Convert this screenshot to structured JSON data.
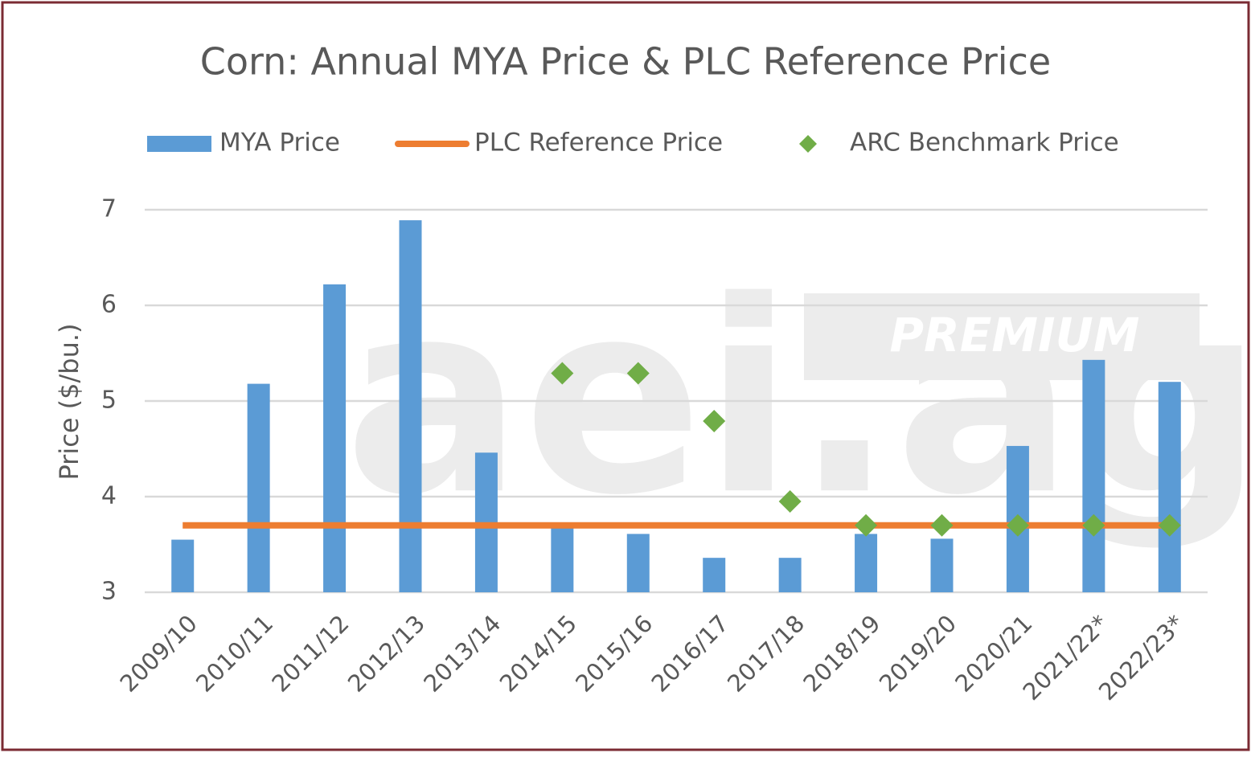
{
  "chart_data": {
    "type": "bar",
    "title": "Corn: Annual MYA Price & PLC Reference Price",
    "y_label": "Price ($/bu.)",
    "watermark": "aei.ag",
    "watermark_badge": "PREMIUM",
    "categories": [
      "2009/10",
      "2010/11",
      "2011/12",
      "2012/13",
      "2013/14",
      "2014/15",
      "2015/16",
      "2016/17",
      "2017/18",
      "2018/19",
      "2019/20",
      "2020/21",
      "2021/22*",
      "2022/23*"
    ],
    "series": [
      {
        "name": "MYA Price",
        "type": "bar",
        "color": "#5b9bd5",
        "values": [
          3.55,
          5.18,
          6.22,
          6.89,
          4.46,
          3.7,
          3.61,
          3.36,
          3.36,
          3.61,
          3.56,
          4.53,
          5.43,
          5.2
        ]
      },
      {
        "name": "PLC Reference Price",
        "type": "line",
        "color": "#ed7d31",
        "values": [
          3.7,
          3.7,
          3.7,
          3.7,
          3.7,
          3.7,
          3.7,
          3.7,
          3.7,
          3.7,
          3.7,
          3.7,
          3.7,
          3.7
        ]
      },
      {
        "name": "ARC Benchmark Price",
        "type": "scatter",
        "color": "#70ad47",
        "values": [
          null,
          null,
          null,
          null,
          null,
          5.29,
          5.29,
          4.79,
          3.95,
          3.7,
          3.7,
          3.7,
          3.7,
          3.7
        ]
      }
    ],
    "ylim": [
      3,
      7
    ],
    "yticks": [
      3,
      4,
      5,
      6,
      7
    ],
    "grid": true,
    "legend": "top"
  }
}
